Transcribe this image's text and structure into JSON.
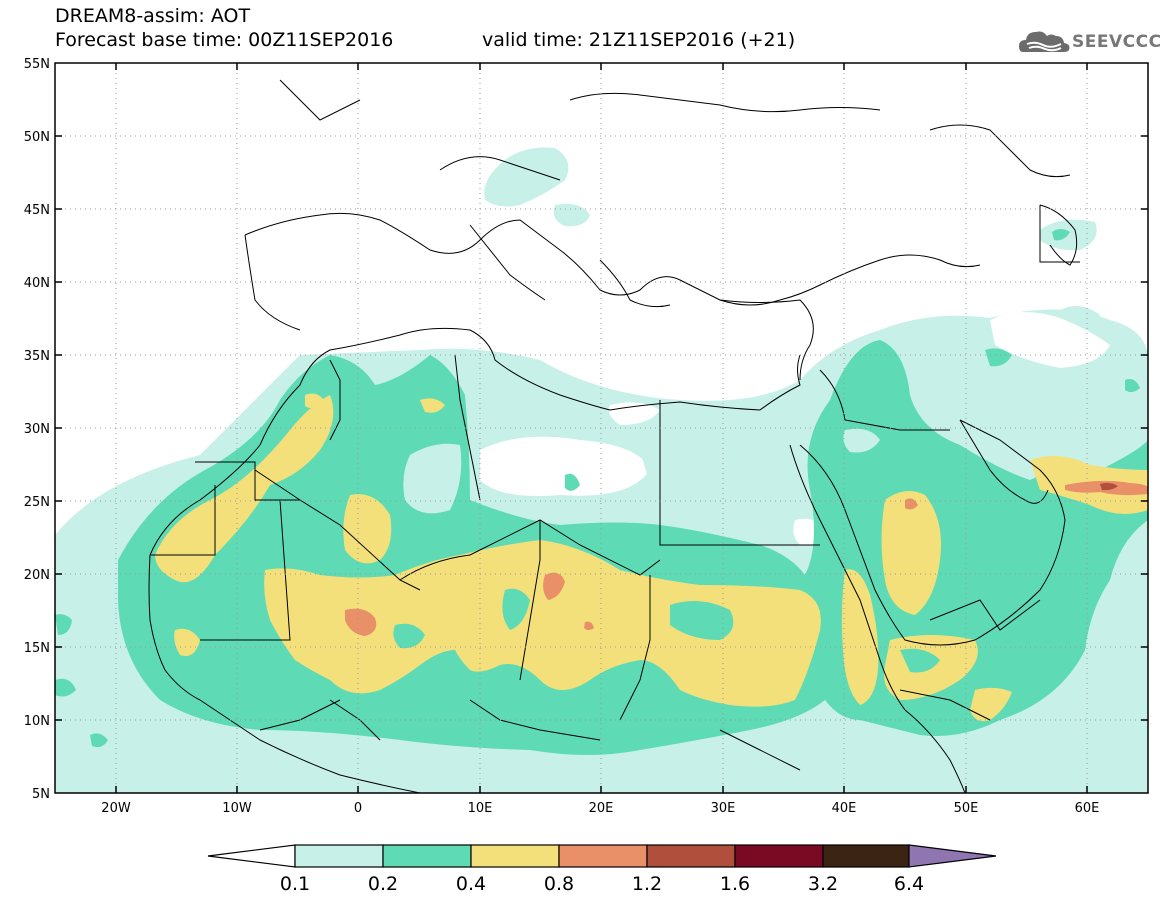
{
  "header": {
    "title_line1": "DREAM8-assim: AOT",
    "title_line2": "Forecast base time: 00Z11SEP2016",
    "valid_time": "valid time: 21Z11SEP2016 (+21)",
    "logo_text": "SEEVCCC"
  },
  "map": {
    "extent": {
      "lon": [
        -25,
        65
      ],
      "lat": [
        5,
        55
      ]
    },
    "lat_labels": [
      "55N",
      "50N",
      "45N",
      "40N",
      "35N",
      "30N",
      "25N",
      "20N",
      "15N",
      "10N",
      "5N"
    ],
    "lon_labels": [
      "20W",
      "10W",
      "0",
      "10E",
      "20E",
      "30E",
      "40E",
      "50E",
      "60E"
    ],
    "grid": "dotted"
  },
  "colorbar": {
    "labels": [
      "0.1",
      "0.2",
      "0.4",
      "0.8",
      "1.2",
      "1.6",
      "3.2",
      "6.4"
    ],
    "colors": [
      "#ffffff",
      "#c6f0e8",
      "#5edbb4",
      "#f4e07a",
      "#e99068",
      "#b0503c",
      "#7a0a24",
      "#3c2414",
      "#9076b0"
    ]
  }
}
